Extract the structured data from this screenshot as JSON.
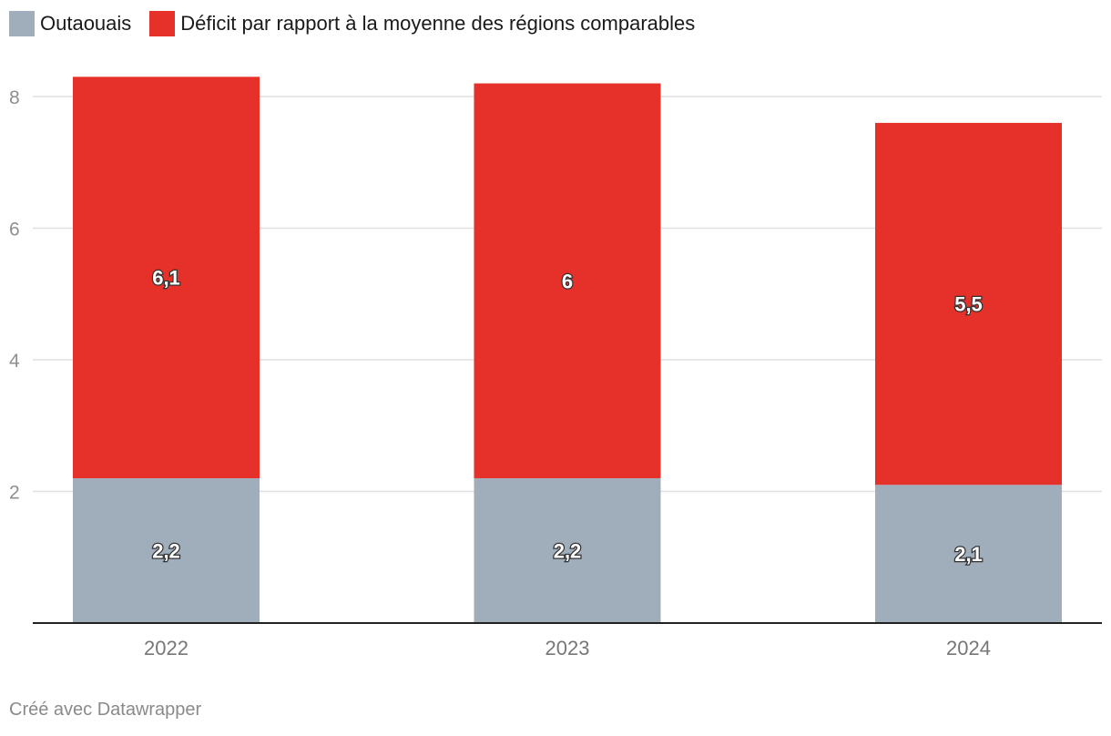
{
  "chart_data": {
    "type": "bar",
    "stacked": true,
    "categories": [
      "2022",
      "2023",
      "2024"
    ],
    "series": [
      {
        "name": "Outaouais",
        "values": [
          2.2,
          2.2,
          2.1
        ],
        "labels": [
          "2,2",
          "2,2",
          "2,1"
        ],
        "color": "#a0adba"
      },
      {
        "name": "Déficit par rapport à la moyenne des régions comparables",
        "values": [
          6.1,
          6.0,
          5.5
        ],
        "labels": [
          "6,1",
          "6",
          "5,5"
        ],
        "color": "#e53129"
      }
    ],
    "yticks": [
      "2",
      "4",
      "6",
      "8"
    ],
    "ylim": [
      0,
      8.5
    ],
    "grid": true,
    "legend": "top-left"
  },
  "footer": "Créé avec Datawrapper"
}
